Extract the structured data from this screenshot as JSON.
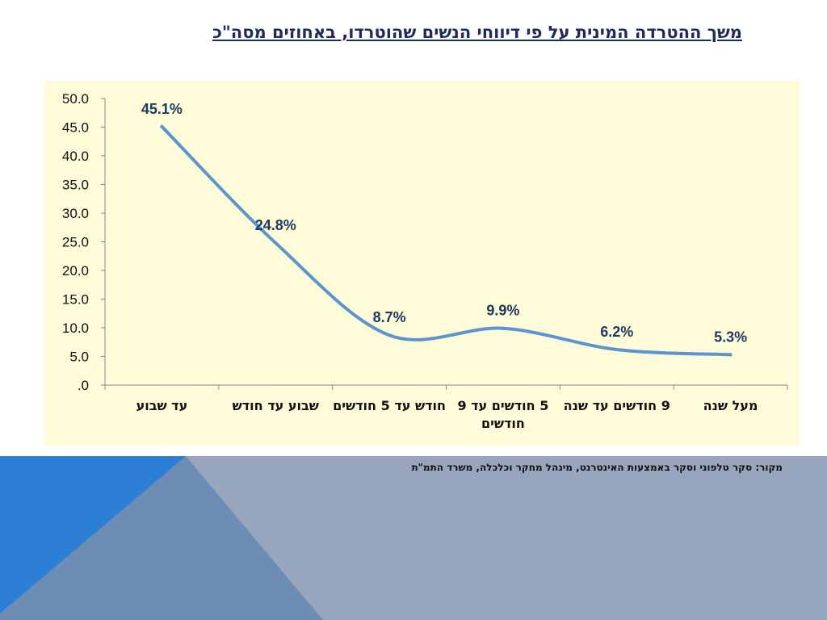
{
  "title": "משך ההטרדה המינית על פי דיווחי הנשים שהוטרדו, באחוזים מסה\"כ",
  "source": "מקור: סקר טלפוני וסקר באמצעות האינטרנט, מינהל מחקר וכלכלה, משרד התמ\"ת",
  "colors": {
    "panel_bg": "#fefbd8",
    "line": "#5b95cf",
    "label": "#1f3864",
    "band_blue": "#2c7fd4",
    "band_steel": "#6d8db5",
    "band_grey": "#97a6bd"
  },
  "chart_data": {
    "type": "line",
    "categories": [
      "עד שבוע",
      "שבוע עד חודש",
      "חודש עד 5 חודשים",
      "5 חודשים עד 9 חודשים",
      "9 חודשים עד שנה",
      "מעל שנה"
    ],
    "values": [
      45.1,
      24.8,
      8.7,
      9.9,
      6.2,
      5.3
    ],
    "data_labels": [
      "45.1%",
      "24.8%",
      "8.7%",
      "9.9%",
      "6.2%",
      "5.3%"
    ],
    "y_ticks": [
      "50.0",
      "45.0",
      "40.0",
      "35.0",
      "30.0",
      "25.0",
      "20.0",
      "15.0",
      "10.0",
      "5.0",
      ".0"
    ],
    "ylim": [
      0,
      50
    ],
    "smooth": true,
    "grid": false,
    "legend": "none"
  }
}
